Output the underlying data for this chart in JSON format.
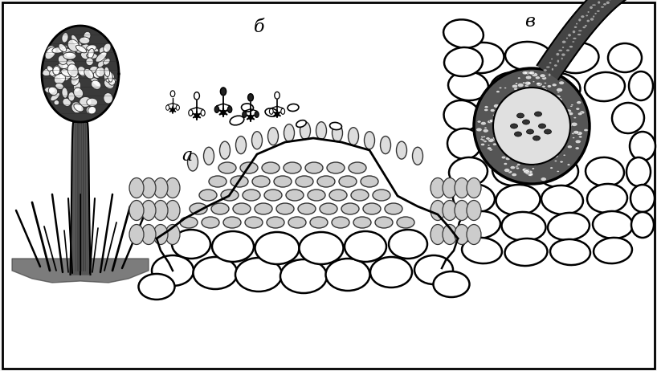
{
  "bg_color": "#f5f5f5",
  "fig_width": 8.18,
  "fig_height": 4.62,
  "dpi": 100,
  "labels": {
    "a": "а",
    "b": "б",
    "v": "в"
  },
  "label_a": [
    233,
    268
  ],
  "label_b": [
    323,
    428
  ],
  "label_v": [
    660,
    435
  ],
  "dark_gray": "#333333",
  "mid_gray": "#777777",
  "light_gray": "#bbbbbb",
  "cell_gray": "#aaaaaa"
}
